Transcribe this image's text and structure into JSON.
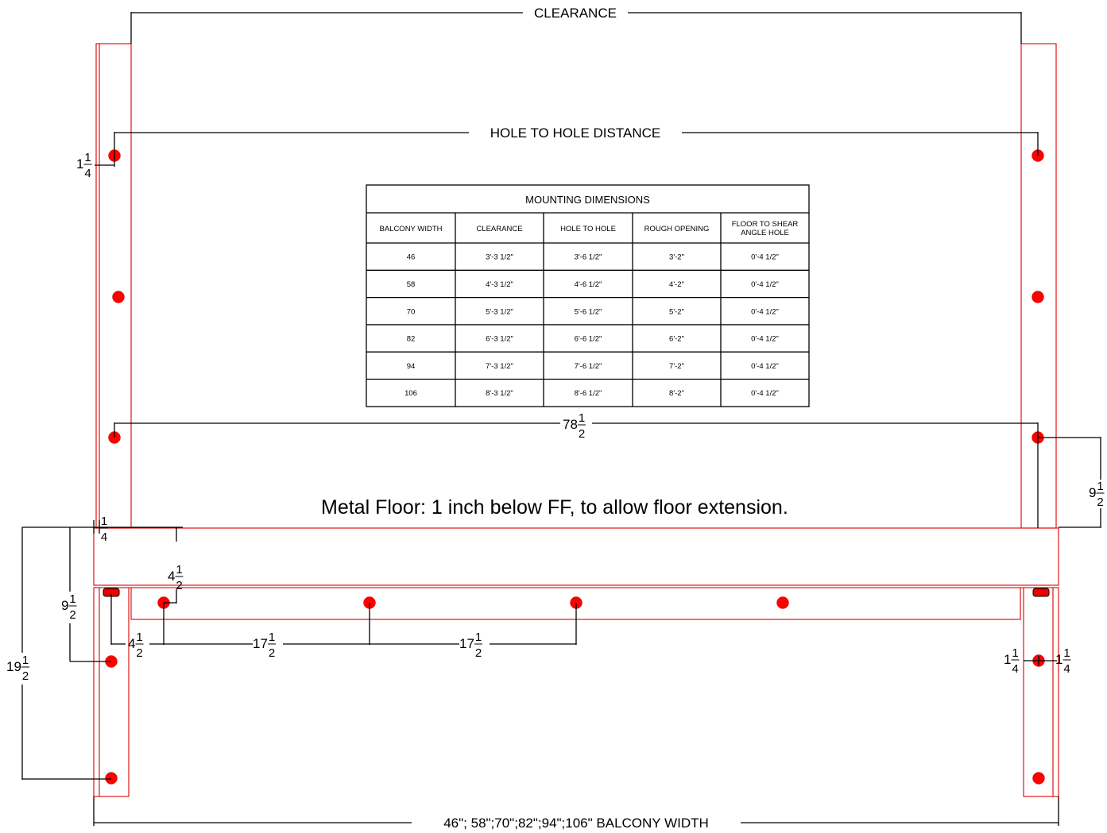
{
  "labels": {
    "clearance": "CLEARANCE",
    "hole_to_hole": "HOLE TO HOLE DISTANCE",
    "balcony_width": "46\"; 58\";70\";82\";94\";106\" BALCONY WIDTH",
    "note": "Metal Floor: 1 inch below FF, to allow floor extension."
  },
  "dimensions": {
    "top_left_offset": {
      "whole": "1",
      "num": "1",
      "den": "4"
    },
    "span_78": {
      "whole": "78",
      "num": "1",
      "den": "2"
    },
    "right_height": {
      "whole": "9",
      "num": "1",
      "den": "2"
    },
    "floor_offset": {
      "whole": "",
      "num": "1",
      "den": "4"
    },
    "floor_drop": {
      "whole": "4",
      "num": "1",
      "den": "2"
    },
    "left_9": {
      "whole": "9",
      "num": "1",
      "den": "2"
    },
    "left_19": {
      "whole": "19",
      "num": "1",
      "den": "2"
    },
    "bottom_4": {
      "whole": "4",
      "num": "1",
      "den": "2"
    },
    "bottom_17a": {
      "whole": "17",
      "num": "1",
      "den": "2"
    },
    "bottom_17b": {
      "whole": "17",
      "num": "1",
      "den": "2"
    },
    "right_1_left": {
      "whole": "1",
      "num": "1",
      "den": "4"
    },
    "right_1_right": {
      "whole": "1",
      "num": "1",
      "den": "4"
    }
  },
  "table": {
    "title": "MOUNTING DIMENSIONS",
    "headers": [
      "BALCONY WIDTH",
      "CLEARANCE",
      "HOLE TO HOLE",
      "ROUGH OPENING",
      "FLOOR TO SHEAR|ANGLE HOLE"
    ],
    "rows": [
      [
        "46",
        "3'-3 1/2\"",
        "3'-6 1/2\"",
        "3'-2\"",
        "0'-4 1/2\""
      ],
      [
        "58",
        "4'-3 1/2\"",
        "4'-6 1/2\"",
        "4'-2\"",
        "0'-4 1/2\""
      ],
      [
        "70",
        "5'-3 1/2\"",
        "5'-6 1/2\"",
        "5'-2\"",
        "0'-4 1/2\""
      ],
      [
        "82",
        "6'-3 1/2\"",
        "6'-6 1/2\"",
        "6'-2\"",
        "0'-4 1/2\""
      ],
      [
        "94",
        "7'-3 1/2\"",
        "7'-6 1/2\"",
        "7'-2\"",
        "0'-4 1/2\""
      ],
      [
        "106",
        "8'-3 1/2\"",
        "8'-6 1/2\"",
        "8'-2\"",
        "0'-4 1/2\""
      ]
    ]
  },
  "colors": {
    "outline": "#dd0000",
    "hole": "#ff0000",
    "dimension": "#000000"
  }
}
